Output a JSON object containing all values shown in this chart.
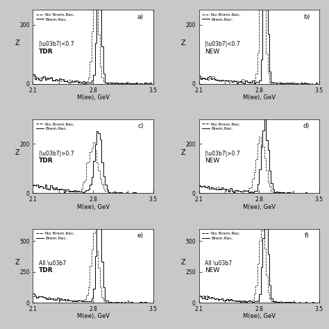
{
  "xlim": [
    2.1,
    3.5
  ],
  "xlabel": "M(ee), GeV",
  "ylabel": "Z",
  "panels": [
    {
      "label": "a)",
      "eta_text": "|\\u03b7|<0.7",
      "method": "TDR",
      "ylim": [
        0,
        250
      ],
      "yticks": [
        0,
        200
      ]
    },
    {
      "label": "b)",
      "eta_text": "|\\u03b7|<0.7",
      "method": "NEW",
      "ylim": [
        0,
        250
      ],
      "yticks": [
        0,
        200
      ]
    },
    {
      "label": "c)",
      "eta_text": "|\\u03b7|>0.7",
      "method": "TDR",
      "ylim": [
        0,
        300
      ],
      "yticks": [
        0,
        200
      ]
    },
    {
      "label": "d)",
      "eta_text": "|\\u03b7|>0.7",
      "method": "NEW",
      "ylim": [
        0,
        300
      ],
      "yticks": [
        0,
        200
      ]
    },
    {
      "label": "e)",
      "eta_text": "All \\u03b7",
      "method": "TDR",
      "ylim": [
        0,
        600
      ],
      "yticks": [
        0,
        250,
        500
      ]
    },
    {
      "label": "f)",
      "eta_text": "All \\u03b7",
      "method": "NEW",
      "ylim": [
        0,
        600
      ],
      "yticks": [
        0,
        250,
        500
      ]
    }
  ],
  "background_color": "#d8d8d8",
  "plot_bg": "#e8e8e8"
}
